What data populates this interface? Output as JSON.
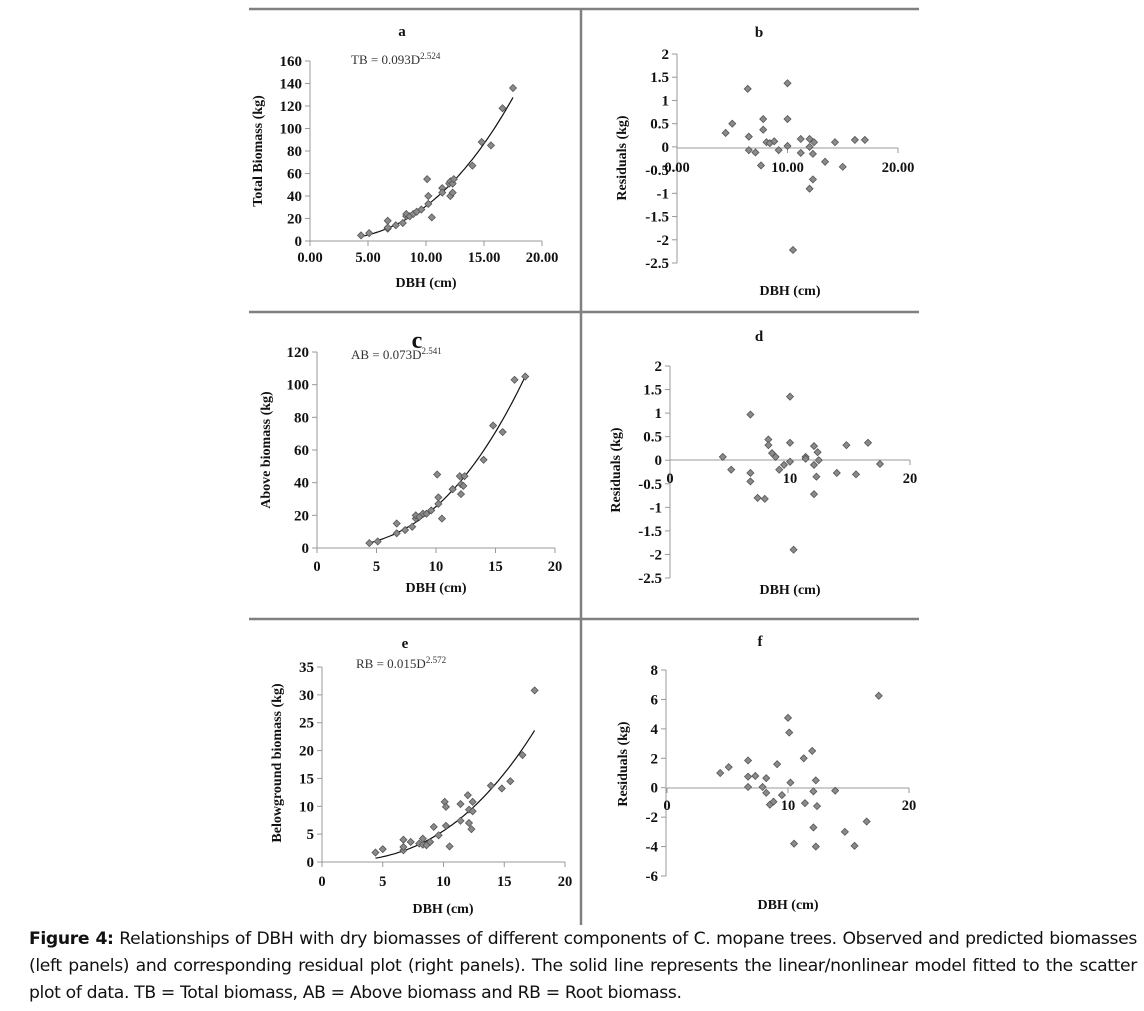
{
  "caption": {
    "label": "Figure 4:",
    "text": " Relationships of DBH with dry biomasses of different components of C. mopane trees.  Observed and predicted biomasses (left panels) and corresponding residual plot (right panels).  The solid line represents the linear/nonlinear model fitted to the scatter plot of data. TB = Total biomass, AB = Above biomass and RB = Root biomass."
  },
  "chart_data": [
    {
      "id": "a",
      "type": "scatter",
      "title": "a",
      "equation": {
        "lhs": "TB = 0.093D",
        "exp": "2.524"
      },
      "model": {
        "a": 0.093,
        "b": 2.524,
        "xrange": [
          4.4,
          17.5
        ]
      },
      "xlabel": "DBH (cm)",
      "ylabel": "Total Biomass (kg)",
      "xlim": [
        0,
        20
      ],
      "ylim": [
        0,
        160
      ],
      "xticks": [
        "0.00",
        "5.00",
        "10.00",
        "15.00",
        "20.00"
      ],
      "yticks": [
        "0",
        "20",
        "40",
        "60",
        "80",
        "100",
        "120",
        "140",
        "160"
      ],
      "x": [
        4.4,
        5.1,
        6.7,
        6.7,
        6.7,
        7.4,
        8.0,
        8.3,
        8.3,
        8.6,
        8.9,
        9.2,
        9.6,
        10.1,
        10.2,
        10.2,
        10.5,
        11.4,
        11.4,
        12.0,
        12.1,
        12.1,
        12.3,
        12.3,
        12.4,
        14.0,
        14.8,
        15.6,
        16.6,
        17.5
      ],
      "y": [
        5,
        7,
        11,
        12,
        18,
        14,
        16,
        22,
        24,
        22,
        24,
        26,
        28,
        55,
        40,
        33,
        21,
        47,
        43,
        51,
        53,
        40,
        43,
        51,
        55,
        67,
        88,
        85,
        118,
        136
      ]
    },
    {
      "id": "b",
      "type": "scatter",
      "title": "b",
      "xlabel": "DBH (cm)",
      "ylabel": "Residuals (kg)",
      "xlim": [
        0,
        20
      ],
      "ylim": [
        -2.5,
        2
      ],
      "xticks": [
        "0.00",
        "10.00",
        "20.00"
      ],
      "yticks": [
        "2",
        "1.5",
        "1",
        "0.5",
        "0",
        "-0.5",
        "-1",
        "-1.5",
        "-2",
        "-2.5"
      ],
      "x": [
        4.4,
        5.0,
        6.4,
        6.5,
        6.5,
        7.1,
        7.6,
        7.8,
        7.8,
        8.1,
        8.4,
        8.8,
        9.2,
        10.0,
        10.0,
        10.0,
        10.5,
        11.2,
        11.2,
        12.0,
        12.0,
        12.0,
        12.3,
        12.3,
        12.4,
        13.4,
        14.3,
        15.0,
        16.1,
        17.0
      ],
      "y": [
        0.3,
        0.5,
        1.25,
        0.22,
        -0.07,
        -0.12,
        -0.4,
        0.6,
        0.37,
        0.1,
        0.08,
        0.12,
        -0.07,
        1.37,
        0.6,
        0.02,
        -2.22,
        0.17,
        -0.13,
        0.17,
        0.0,
        -0.9,
        -0.7,
        -0.15,
        0.1,
        -0.32,
        0.1,
        -0.43,
        0.15,
        0.15
      ]
    },
    {
      "id": "c",
      "type": "scatter",
      "title": "c",
      "equation": {
        "lhs": "AB = 0.073D",
        "exp": "2.541"
      },
      "model": {
        "a": 0.073,
        "b": 2.541,
        "xrange": [
          4.4,
          17.5
        ]
      },
      "xlabel": "DBH (cm)",
      "ylabel": "Above  biomass (kg)",
      "xlim": [
        0,
        20
      ],
      "ylim": [
        0,
        120
      ],
      "xticks": [
        "0",
        "5",
        "10",
        "15",
        "20"
      ],
      "yticks": [
        "0",
        "20",
        "40",
        "60",
        "80",
        "100",
        "120"
      ],
      "x": [
        4.4,
        5.1,
        6.7,
        6.7,
        7.4,
        8.0,
        8.3,
        8.3,
        8.6,
        8.9,
        9.2,
        9.6,
        10.1,
        10.2,
        10.2,
        10.5,
        11.4,
        11.4,
        12.0,
        12.1,
        12.1,
        12.3,
        12.4,
        14.0,
        14.8,
        15.6,
        16.6,
        17.5
      ],
      "y": [
        3,
        4,
        9,
        15,
        11,
        13,
        18,
        20,
        19,
        21,
        21,
        23,
        45,
        31,
        27,
        18,
        36,
        36,
        44,
        33,
        39,
        38,
        44,
        54,
        75,
        71,
        103,
        105
      ]
    },
    {
      "id": "d",
      "type": "scatter",
      "title": "d",
      "xlabel": "DBH (cm)",
      "ylabel": "Residuals (kg)",
      "xlim": [
        0,
        20
      ],
      "ylim": [
        -2.5,
        2
      ],
      "xticks": [
        "0",
        "10",
        "20"
      ],
      "yticks": [
        "2",
        "1.5",
        "1",
        "0.5",
        "0",
        "-0.5",
        "-1",
        "-1.5",
        "-2",
        "-2.5"
      ],
      "x": [
        4.4,
        5.1,
        6.7,
        6.7,
        6.7,
        7.3,
        7.9,
        8.2,
        8.2,
        8.5,
        8.8,
        9.1,
        9.5,
        10.0,
        10.0,
        10.0,
        10.3,
        11.3,
        11.3,
        12.0,
        12.0,
        12.0,
        12.2,
        12.3,
        12.4,
        13.9,
        14.7,
        15.5,
        16.5,
        17.5
      ],
      "y": [
        0.07,
        -0.2,
        0.97,
        -0.27,
        -0.45,
        -0.8,
        -0.82,
        0.44,
        0.32,
        0.15,
        0.07,
        -0.2,
        -0.1,
        1.35,
        0.37,
        -0.03,
        -1.9,
        0.07,
        0.03,
        0.3,
        -0.1,
        -0.72,
        -0.35,
        0.17,
        0.0,
        -0.27,
        0.32,
        -0.3,
        0.37,
        -0.08
      ]
    },
    {
      "id": "e",
      "type": "scatter",
      "title": "e",
      "equation": {
        "lhs": "RB = 0.015D",
        "exp": "2.572"
      },
      "model": {
        "a": 0.015,
        "b": 2.572,
        "xrange": [
          4.4,
          17.5
        ]
      },
      "xlabel": "DBH (cm)",
      "ylabel": "Belowground biomass (kg)",
      "xlim": [
        0,
        20
      ],
      "ylim": [
        0,
        35
      ],
      "xticks": [
        "0",
        "5",
        "10",
        "15",
        "20"
      ],
      "yticks": [
        "0",
        "5",
        "10",
        "15",
        "20",
        "25",
        "30",
        "35"
      ],
      "x": [
        4.4,
        5.0,
        6.7,
        6.7,
        6.7,
        7.3,
        8.0,
        8.3,
        8.3,
        8.6,
        8.9,
        9.2,
        9.6,
        10.1,
        10.2,
        10.2,
        10.5,
        11.4,
        11.4,
        12.0,
        12.1,
        12.1,
        12.3,
        12.4,
        12.4,
        13.9,
        14.8,
        15.5,
        16.5,
        17.5
      ],
      "y": [
        1.7,
        2.3,
        2.1,
        2.7,
        4.0,
        3.6,
        3.3,
        3.1,
        4.2,
        3.0,
        3.6,
        6.3,
        4.8,
        10.8,
        9.9,
        6.5,
        2.8,
        10.4,
        7.4,
        12.0,
        9.4,
        7.0,
        5.9,
        10.8,
        9.1,
        13.7,
        13.2,
        14.5,
        19.2,
        30.8
      ]
    },
    {
      "id": "f",
      "type": "scatter",
      "title": "f",
      "xlabel": "DBH (cm)",
      "ylabel": "Residuals (kg)",
      "xlim": [
        0,
        20
      ],
      "ylim": [
        -6,
        8
      ],
      "xticks": [
        "0",
        "10",
        "20"
      ],
      "yticks": [
        "8",
        "6",
        "4",
        "2",
        "0",
        "-2",
        "-4",
        "-6"
      ],
      "x": [
        4.4,
        5.1,
        6.7,
        6.7,
        6.7,
        7.3,
        7.9,
        8.2,
        8.2,
        8.5,
        8.8,
        9.1,
        9.5,
        10.0,
        10.1,
        10.2,
        10.5,
        11.3,
        11.4,
        12.0,
        12.1,
        12.1,
        12.3,
        12.3,
        12.4,
        13.9,
        14.7,
        15.5,
        16.5,
        17.5
      ],
      "y": [
        1.0,
        1.4,
        1.85,
        0.75,
        0.05,
        0.8,
        0.05,
        0.65,
        -0.35,
        -1.15,
        -0.95,
        1.6,
        -0.5,
        4.75,
        3.75,
        0.35,
        -3.8,
        2.0,
        -1.05,
        2.5,
        -0.25,
        -2.7,
        -4.0,
        0.5,
        -1.25,
        -0.2,
        -3.0,
        -3.95,
        -2.3,
        6.25
      ]
    }
  ]
}
